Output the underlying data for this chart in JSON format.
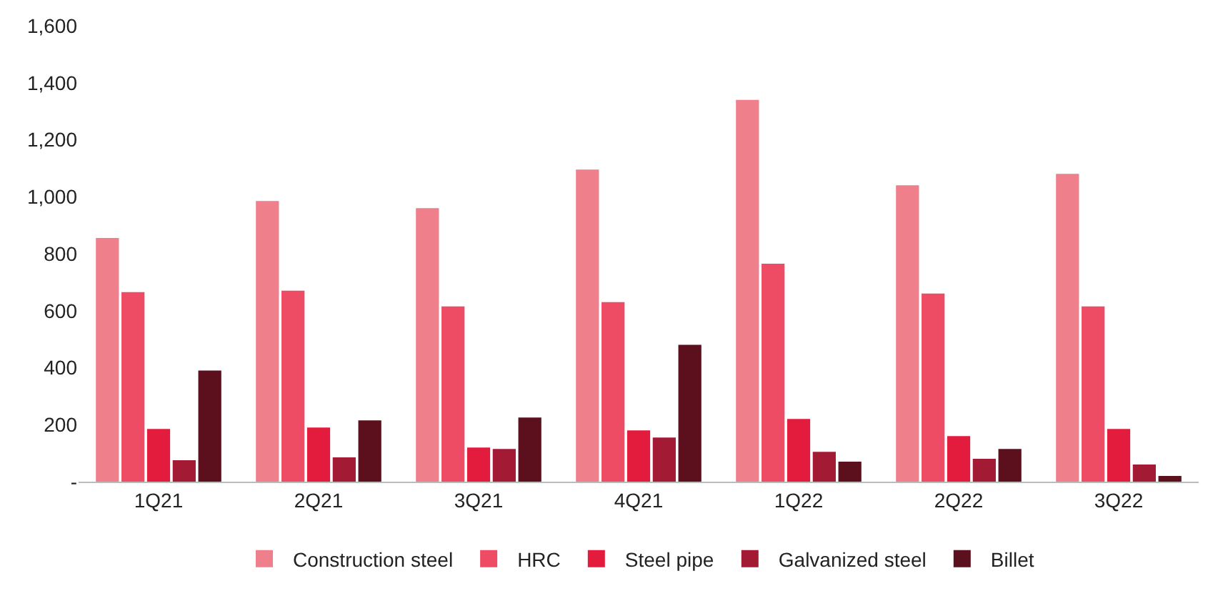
{
  "chart_data": {
    "type": "bar",
    "categories": [
      "1Q21",
      "2Q21",
      "3Q21",
      "4Q21",
      "1Q22",
      "2Q22",
      "3Q22"
    ],
    "series": [
      {
        "name": "Construction steel",
        "color": "#f07f8c",
        "values": [
          855,
          985,
          960,
          1095,
          1340,
          1040,
          1080
        ]
      },
      {
        "name": "HRC",
        "color": "#ee4b64",
        "values": [
          665,
          670,
          615,
          630,
          765,
          660,
          615
        ]
      },
      {
        "name": "Steel pipe",
        "color": "#e31b3c",
        "values": [
          185,
          190,
          120,
          180,
          220,
          160,
          185
        ]
      },
      {
        "name": "Galvanized steel",
        "color": "#a31a35",
        "values": [
          75,
          85,
          115,
          155,
          105,
          80,
          60
        ]
      },
      {
        "name": "Billet",
        "color": "#5c0f1c",
        "values": [
          390,
          215,
          225,
          480,
          70,
          115,
          20
        ]
      }
    ],
    "ylim": [
      0,
      1600
    ],
    "yticks": [
      {
        "value": 0,
        "label": "-"
      },
      {
        "value": 200,
        "label": "200"
      },
      {
        "value": 400,
        "label": "400"
      },
      {
        "value": 600,
        "label": "600"
      },
      {
        "value": 800,
        "label": "800"
      },
      {
        "value": 1000,
        "label": "1,000"
      },
      {
        "value": 1200,
        "label": "1,200"
      },
      {
        "value": 1400,
        "label": "1,400"
      },
      {
        "value": 1600,
        "label": "1,600"
      }
    ],
    "legend": "bottom"
  }
}
